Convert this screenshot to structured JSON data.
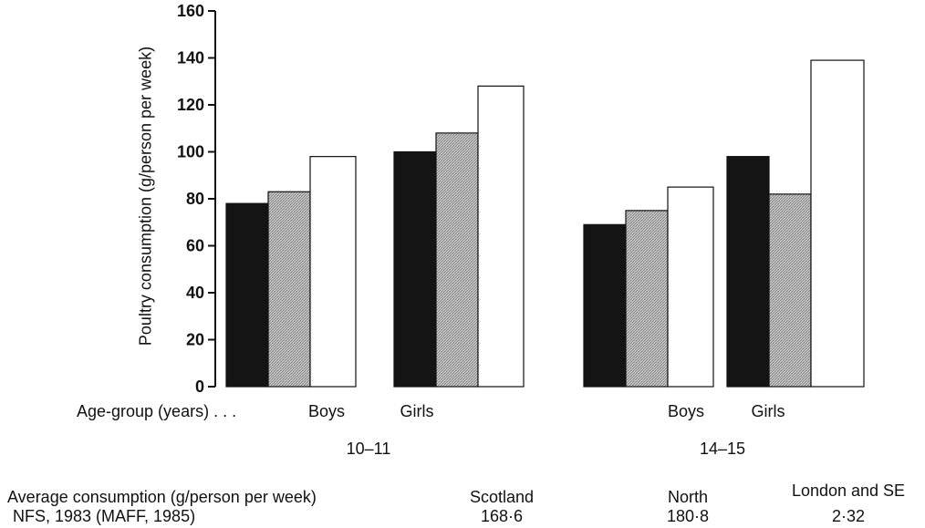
{
  "chart_data": {
    "type": "bar",
    "ylabel": "Poultry consumption (g/person per week)",
    "ylim": [
      0,
      160
    ],
    "yticks": [
      0,
      20,
      40,
      60,
      80,
      100,
      120,
      140,
      160
    ],
    "age_group_label": "Age-group (years) . . .",
    "groups": [
      {
        "age": "10–11",
        "sexes": [
          {
            "sex": "Boys",
            "values": [
              78,
              83,
              98
            ]
          },
          {
            "sex": "Girls",
            "values": [
              100,
              108,
              128
            ]
          }
        ]
      },
      {
        "age": "14–15",
        "sexes": [
          {
            "sex": "Boys",
            "values": [
              69,
              75,
              85
            ]
          },
          {
            "sex": "Girls",
            "values": [
              98,
              82,
              139
            ]
          }
        ]
      }
    ],
    "series_fills": [
      "#141414",
      "#b8b8b8",
      "#ffffff"
    ],
    "grid": false
  },
  "footer": {
    "avg_label_line1": "Average consumption (g/person per week)",
    "avg_label_line2": "NFS, 1983 (MAFF, 1985)",
    "regions": [
      {
        "name": "Scotland",
        "value": "168·6"
      },
      {
        "name": "North",
        "value": "180·8"
      },
      {
        "name": "London and SE",
        "value": "2·32"
      }
    ]
  }
}
